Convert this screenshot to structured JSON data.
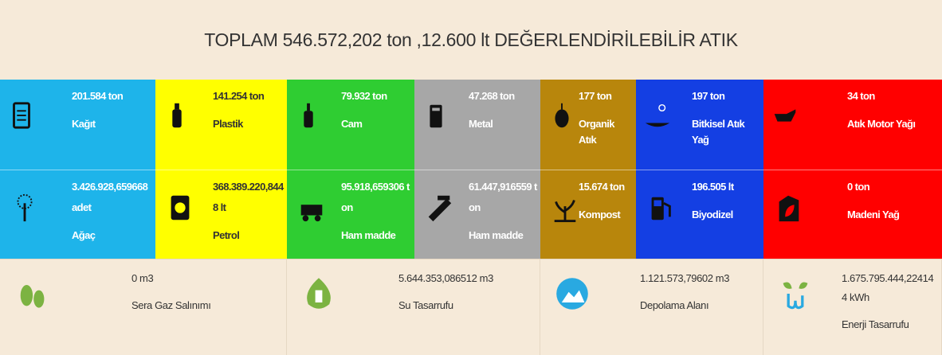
{
  "header": {
    "title": "TOPLAM 546.572,202 ton ,12.600 lt DEĞERLENDİRİLEBİLİR ATIK"
  },
  "tiles": [
    [
      {
        "value": "201.584 ton",
        "label": "Kağıt"
      },
      {
        "value": "141.254 ton",
        "label": "Plastik"
      },
      {
        "value": "79.932 ton",
        "label": "Cam"
      },
      {
        "value": "47.268 ton",
        "label": "Metal"
      },
      {
        "value": "177 ton",
        "label": "Organik Atık"
      },
      {
        "value": "197 ton",
        "label": "Bitkisel Atık Yağ"
      },
      {
        "value": "34 ton",
        "label": "Atık Motor Yağı"
      }
    ],
    [
      {
        "value": "3.426.928,659668 adet",
        "label": "Ağaç"
      },
      {
        "value": "368.389.220,8448 lt",
        "label": "Petrol"
      },
      {
        "value": "95.918,659306 ton",
        "label": "Ham madde"
      },
      {
        "value": "61.447,916559 ton",
        "label": "Ham madde"
      },
      {
        "value": "15.674 ton",
        "label": "Kompost"
      },
      {
        "value": "196.505 lt",
        "label": "Biyodizel"
      },
      {
        "value": "0 ton",
        "label": "Madeni Yağ"
      }
    ]
  ],
  "savings": [
    {
      "value": "0 m3",
      "label": "Sera Gaz Salınımı"
    },
    {
      "value": "5.644.353,086512 m3",
      "label": "Su Tasarrufu"
    },
    {
      "value": "1.121.573,79602 m3",
      "label": "Depolama Alanı"
    },
    {
      "value": "1.675.795.444,224144 kWh",
      "label": "Enerji Tasarrufu"
    }
  ]
}
